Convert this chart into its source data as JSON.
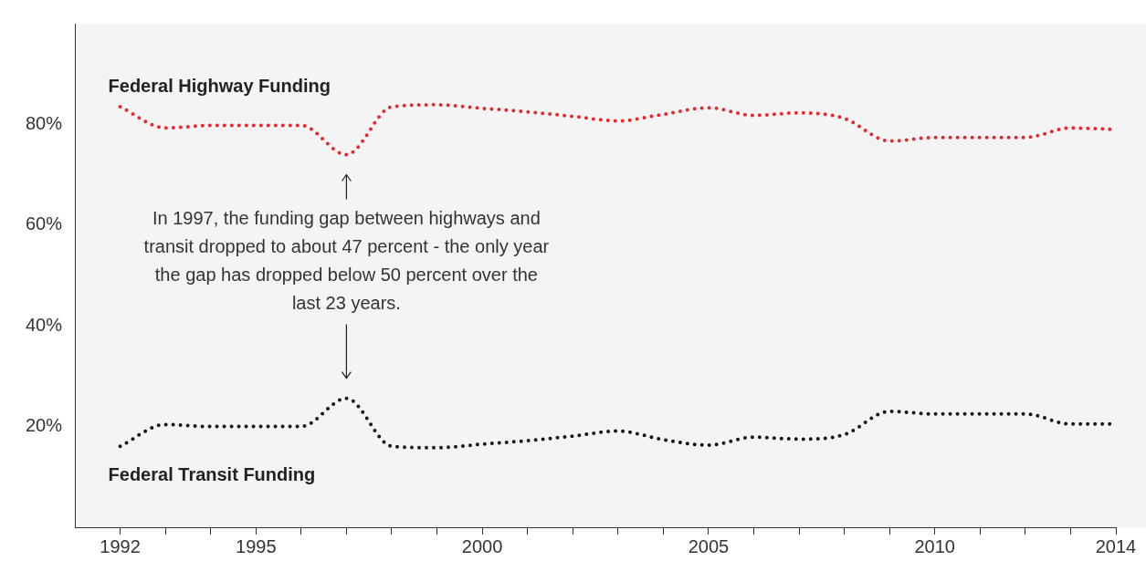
{
  "chart_data": {
    "type": "line",
    "x": [
      1992,
      1993,
      1994,
      1995,
      1996,
      1997,
      1998,
      1999,
      2000,
      2001,
      2002,
      2003,
      2004,
      2005,
      2006,
      2007,
      2008,
      2009,
      2010,
      2011,
      2012,
      2013,
      2014
    ],
    "series": [
      {
        "name": "Federal Highway Funding",
        "color": "#e8262b",
        "values": [
          83.5,
          79.3,
          79.8,
          79.8,
          79.8,
          74,
          83.5,
          83.9,
          83.2,
          82.5,
          81.6,
          80.7,
          82,
          83.3,
          81.8,
          82.3,
          81.2,
          76.7,
          77.4,
          77.4,
          77.4,
          79.3,
          79
        ]
      },
      {
        "name": "Federal Transit Funding",
        "color": "#111111",
        "values": [
          16.1,
          20.4,
          20,
          20,
          20,
          25.6,
          16.1,
          15.8,
          16.5,
          17.2,
          18.1,
          19.1,
          17.4,
          16.3,
          17.9,
          17.5,
          18.4,
          23,
          22.5,
          22.5,
          22.5,
          20.5,
          20.5
        ]
      }
    ],
    "xlim": [
      1991,
      2014
    ],
    "xticks": [
      1992,
      {
        "value": 1993,
        "label": null
      },
      {
        "value": 1994,
        "label": null
      },
      1995,
      {
        "value": 1996,
        "label": null
      },
      {
        "value": 1997,
        "label": null
      },
      {
        "value": 1998,
        "label": null
      },
      {
        "value": 1999,
        "label": null
      },
      2000,
      {
        "value": 2001,
        "label": null
      },
      {
        "value": 2002,
        "label": null
      },
      {
        "value": 2003,
        "label": null
      },
      {
        "value": 2004,
        "label": null
      },
      2005,
      {
        "value": 2006,
        "label": null
      },
      {
        "value": 2007,
        "label": null
      },
      {
        "value": 2008,
        "label": null
      },
      {
        "value": 2009,
        "label": null
      },
      2010,
      {
        "value": 2011,
        "label": null
      },
      {
        "value": 2012,
        "label": null
      },
      {
        "value": 2013,
        "label": null
      },
      2014
    ],
    "ylim": [
      0,
      100
    ],
    "yticks": [
      {
        "value": 20,
        "label": "20%"
      },
      {
        "value": 40,
        "label": "40%"
      },
      {
        "value": 60,
        "label": "60%"
      },
      {
        "value": 80,
        "label": "80%"
      }
    ],
    "grid": false,
    "legend": false,
    "marker": "none",
    "line_style": "dotted",
    "annotations": [
      "In 1997, the funding gap between highways and transit dropped to about 47 percent - the only year the gap has dropped below 50 percent over the last 23 years."
    ]
  }
}
